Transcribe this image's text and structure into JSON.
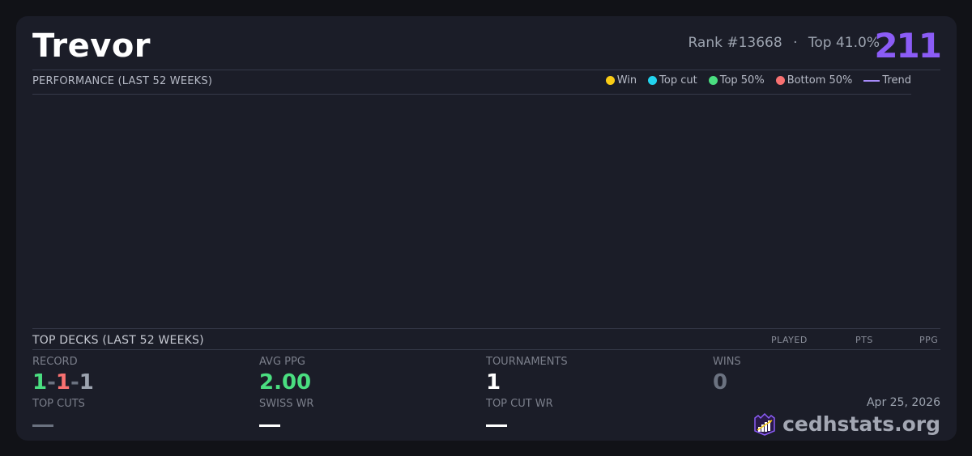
{
  "player": {
    "name": "Trevor",
    "rank": "Rank #13668",
    "separator": "·",
    "top_percent": "Top 41.0%",
    "score": "211"
  },
  "performance": {
    "title": "PERFORMANCE (LAST 52 WEEKS)",
    "legend": [
      {
        "label": "Win",
        "color": "#facc15",
        "shape": "dot"
      },
      {
        "label": "Top cut",
        "color": "#22d3ee",
        "shape": "dot"
      },
      {
        "label": "Top 50%",
        "color": "#4ade80",
        "shape": "dot"
      },
      {
        "label": "Bottom 50%",
        "color": "#f87171",
        "shape": "dot"
      },
      {
        "label": "Trend",
        "color": "#a78bfa",
        "shape": "line"
      }
    ]
  },
  "top_decks": {
    "title": "TOP DECKS (LAST 52 WEEKS)",
    "columns": [
      "PLAYED",
      "PTS",
      "PPG"
    ]
  },
  "stats": {
    "record_label": "RECORD",
    "record": {
      "wins": "1",
      "losses": "1",
      "draws": "1",
      "sep": "-"
    },
    "avg_ppg_label": "AVG PPG",
    "avg_ppg": "2.00",
    "tournaments_label": "TOURNAMENTS",
    "tournaments": "1",
    "wins_label": "WINS",
    "wins": "0",
    "top_cuts_label": "TOP CUTS",
    "swiss_wr_label": "SWISS WR",
    "top_cut_wr_label": "TOP CUT WR"
  },
  "footer": {
    "date": "Apr 25, 2026",
    "brand": "cedhstats.org"
  },
  "colors": {
    "accent": "#8b5cf6",
    "green": "#4ade80",
    "red": "#f87171"
  }
}
